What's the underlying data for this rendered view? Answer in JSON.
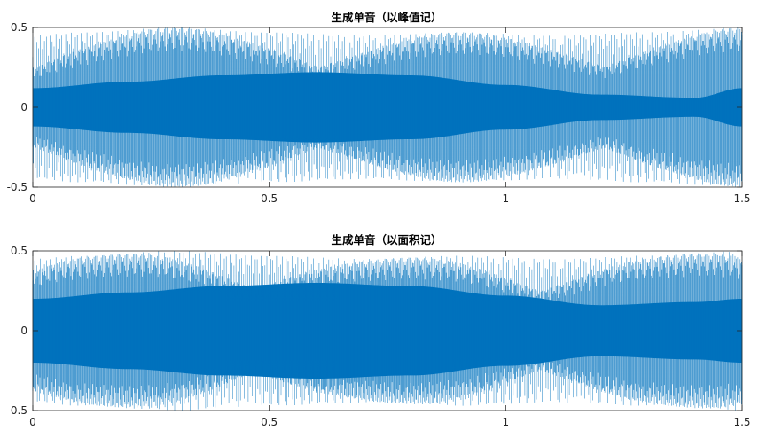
{
  "figure": {
    "background": "#ffffff",
    "line_color": "#0072bd",
    "axis_color": "#262626"
  },
  "chart_data": [
    {
      "type": "line",
      "title": "生成单音（以峰值记）",
      "xlabel": "",
      "ylabel": "",
      "xlim": [
        0,
        1.5
      ],
      "ylim": [
        -0.5,
        0.5
      ],
      "xticks": [
        0,
        0.5,
        1,
        1.5
      ],
      "xtick_labels": [
        "0",
        "0.5",
        "1",
        "1.5"
      ],
      "yticks": [
        -0.5,
        0,
        0.5
      ],
      "ytick_labels": [
        "-0.5",
        "0",
        "0.5"
      ],
      "grid": false,
      "series": [
        {
          "description_of_signal": "dense sampled tone with beating envelope",
          "inner_envelope": {
            "x": [
              0,
              0.2,
              0.4,
              0.6,
              0.8,
              1.0,
              1.2,
              1.4,
              1.5
            ],
            "y": [
              0.12,
              0.16,
              0.2,
              0.22,
              0.2,
              0.14,
              0.08,
              0.06,
              0.12
            ]
          },
          "outer_envelope": {
            "x": [
              0,
              0.1,
              0.3,
              0.5,
              0.7,
              0.9,
              1.1,
              1.3,
              1.5
            ],
            "y": [
              0.45,
              0.47,
              0.5,
              0.47,
              0.45,
              0.47,
              0.45,
              0.47,
              0.5
            ]
          }
        }
      ]
    },
    {
      "type": "line",
      "title": "生成单音（以面积记）",
      "xlabel": "",
      "ylabel": "",
      "xlim": [
        0,
        1.5
      ],
      "ylim": [
        -0.5,
        0.5
      ],
      "xticks": [
        0,
        0.5,
        1,
        1.5
      ],
      "xtick_labels": [
        "0",
        "0.5",
        "1",
        "1.5"
      ],
      "yticks": [
        -0.5,
        0,
        0.5
      ],
      "ytick_labels": [
        "-0.5",
        "0",
        "0.5"
      ],
      "grid": false,
      "series": [
        {
          "description_of_signal": "dense sampled tone with beating envelope",
          "inner_envelope": {
            "x": [
              0,
              0.2,
              0.4,
              0.6,
              0.8,
              1.0,
              1.2,
              1.4,
              1.5
            ],
            "y": [
              0.2,
              0.24,
              0.28,
              0.3,
              0.28,
              0.22,
              0.16,
              0.18,
              0.2
            ]
          },
          "outer_envelope": {
            "x": [
              0,
              0.1,
              0.3,
              0.5,
              0.7,
              0.9,
              1.1,
              1.3,
              1.5
            ],
            "y": [
              0.45,
              0.47,
              0.5,
              0.47,
              0.45,
              0.47,
              0.45,
              0.47,
              0.5
            ]
          }
        }
      ]
    }
  ]
}
